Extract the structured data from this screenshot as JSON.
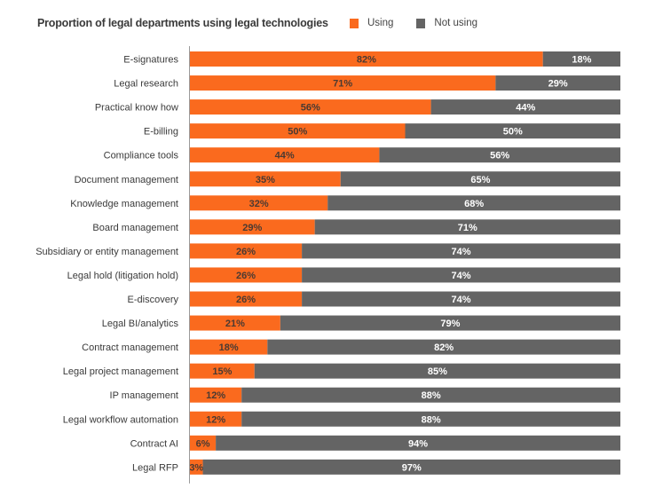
{
  "chart_data": {
    "type": "bar",
    "orientation": "horizontal",
    "stacked": true,
    "title": "Proportion of legal departments using legal technologies",
    "xlabel": "",
    "ylabel": "",
    "xlim": [
      0,
      100
    ],
    "grid": false,
    "legend_position": "top-right",
    "categories": [
      "E-signatures",
      "Legal research",
      "Practical know how",
      "E-billing",
      "Compliance tools",
      "Document management",
      "Knowledge management",
      "Board management",
      "Subsidiary or entity management",
      "Legal hold (litigation hold)",
      "E-discovery",
      "Legal BI/analytics",
      "Contract management",
      "Legal project management",
      "IP management",
      "Legal workflow automation",
      "Contract AI",
      "Legal RFP"
    ],
    "series": [
      {
        "name": "Using",
        "color": "#fa6a1e",
        "label_color": "#4a3a32",
        "values": [
          82,
          71,
          56,
          50,
          44,
          35,
          32,
          29,
          26,
          26,
          26,
          21,
          18,
          15,
          12,
          12,
          6,
          3
        ]
      },
      {
        "name": "Not using",
        "color": "#646464",
        "label_color": "#ffffff",
        "values": [
          18,
          29,
          44,
          50,
          56,
          65,
          68,
          71,
          74,
          74,
          74,
          79,
          82,
          85,
          88,
          88,
          94,
          97
        ]
      }
    ],
    "value_suffix": "%"
  }
}
